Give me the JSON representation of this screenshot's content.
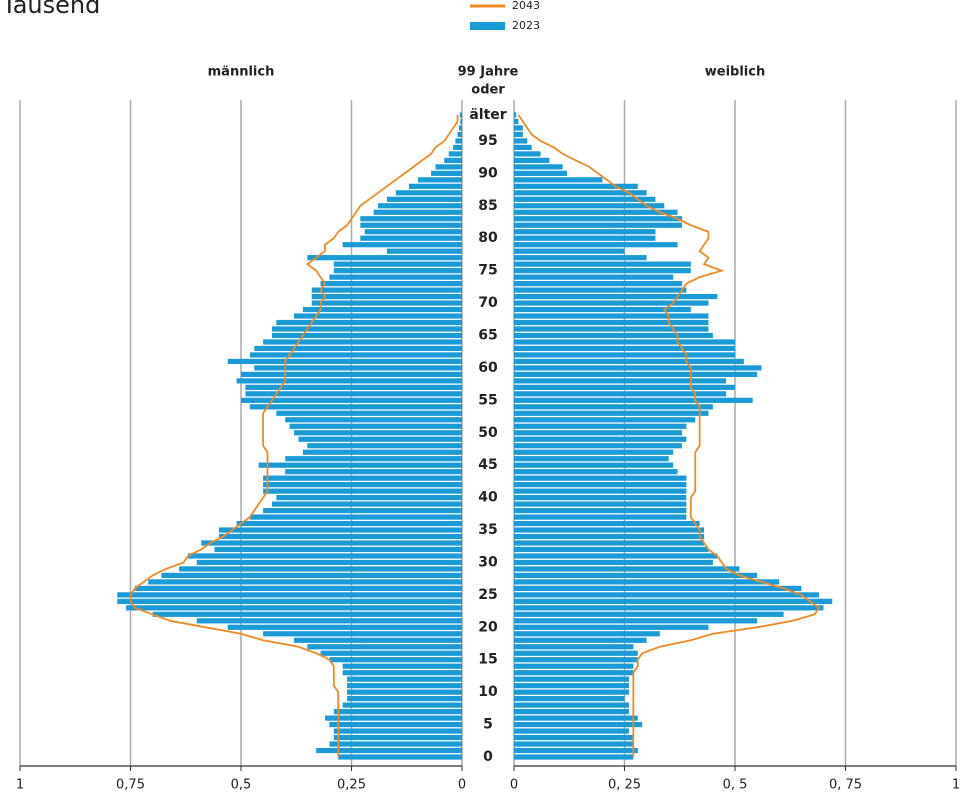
{
  "chart_data": {
    "type": "pyramid",
    "title": "Tausend",
    "legend": [
      {
        "name": "2043",
        "color": "#f08a24",
        "style": "line"
      },
      {
        "name": "2023",
        "color": "#1a9ad6",
        "style": "bar"
      }
    ],
    "age_top_label": [
      "99 Jahre",
      "oder",
      "älter"
    ],
    "ages": [
      0,
      1,
      2,
      3,
      4,
      5,
      6,
      7,
      8,
      9,
      10,
      11,
      12,
      13,
      14,
      15,
      16,
      17,
      18,
      19,
      20,
      21,
      22,
      23,
      24,
      25,
      26,
      27,
      28,
      29,
      30,
      31,
      32,
      33,
      34,
      35,
      36,
      37,
      38,
      39,
      40,
      41,
      42,
      43,
      44,
      45,
      46,
      47,
      48,
      49,
      50,
      51,
      52,
      53,
      54,
      55,
      56,
      57,
      58,
      59,
      60,
      61,
      62,
      63,
      64,
      65,
      66,
      67,
      68,
      69,
      70,
      71,
      72,
      73,
      74,
      75,
      76,
      77,
      78,
      79,
      80,
      81,
      82,
      83,
      84,
      85,
      86,
      87,
      88,
      89,
      90,
      91,
      92,
      93,
      94,
      95,
      96,
      97,
      98,
      99
    ],
    "ylim": [
      0,
      99
    ],
    "yticks": [
      0,
      5,
      10,
      15,
      20,
      25,
      30,
      35,
      40,
      45,
      50,
      55,
      60,
      65,
      70,
      75,
      80,
      85,
      90,
      95
    ],
    "grid": true,
    "panels": [
      {
        "name": "männlich",
        "side": "left",
        "xlim": [
          0,
          1
        ],
        "xticks": [
          0,
          {
            "value": 0.25,
            "label": "0,25"
          },
          {
            "value": 0.5,
            "label": "0,5"
          },
          {
            "value": 0.75,
            "label": "0,75"
          },
          1
        ],
        "bars": [
          0.28,
          0.33,
          0.3,
          0.29,
          0.29,
          0.3,
          0.31,
          0.29,
          0.27,
          0.26,
          0.26,
          0.26,
          0.26,
          0.27,
          0.27,
          0.3,
          0.32,
          0.35,
          0.38,
          0.45,
          0.53,
          0.6,
          0.7,
          0.76,
          0.78,
          0.78,
          0.74,
          0.71,
          0.68,
          0.64,
          0.6,
          0.62,
          0.56,
          0.59,
          0.55,
          0.55,
          0.51,
          0.48,
          0.45,
          0.43,
          0.42,
          0.45,
          0.45,
          0.45,
          0.4,
          0.46,
          0.4,
          0.36,
          0.35,
          0.37,
          0.38,
          0.39,
          0.4,
          0.42,
          0.48,
          0.5,
          0.49,
          0.49,
          0.51,
          0.5,
          0.47,
          0.53,
          0.48,
          0.47,
          0.45,
          0.43,
          0.43,
          0.42,
          0.38,
          0.36,
          0.34,
          0.34,
          0.34,
          0.32,
          0.3,
          0.29,
          0.29,
          0.35,
          0.17,
          0.27,
          0.23,
          0.22,
          0.23,
          0.23,
          0.2,
          0.19,
          0.17,
          0.15,
          0.12,
          0.1,
          0.07,
          0.06,
          0.04,
          0.03,
          0.02,
          0.015,
          0.01,
          0.007,
          0.004,
          0.005
        ],
        "line": [
          0.28,
          0.28,
          0.28,
          0.28,
          0.28,
          0.28,
          0.28,
          0.28,
          0.28,
          0.28,
          0.28,
          0.29,
          0.29,
          0.29,
          0.29,
          0.3,
          0.33,
          0.37,
          0.45,
          0.5,
          0.58,
          0.66,
          0.7,
          0.74,
          0.75,
          0.75,
          0.74,
          0.72,
          0.7,
          0.67,
          0.63,
          0.62,
          0.59,
          0.57,
          0.54,
          0.52,
          0.5,
          0.48,
          0.47,
          0.46,
          0.45,
          0.44,
          0.44,
          0.44,
          0.44,
          0.44,
          0.44,
          0.44,
          0.45,
          0.45,
          0.45,
          0.45,
          0.45,
          0.45,
          0.44,
          0.43,
          0.42,
          0.41,
          0.4,
          0.4,
          0.4,
          0.4,
          0.39,
          0.38,
          0.37,
          0.36,
          0.35,
          0.34,
          0.33,
          0.32,
          0.32,
          0.31,
          0.32,
          0.31,
          0.32,
          0.33,
          0.35,
          0.33,
          0.31,
          0.31,
          0.29,
          0.28,
          0.26,
          0.25,
          0.24,
          0.23,
          0.21,
          0.19,
          0.17,
          0.15,
          0.13,
          0.11,
          0.09,
          0.07,
          0.06,
          0.04,
          0.03,
          0.02,
          0.01,
          0.01
        ]
      },
      {
        "name": "weiblich",
        "side": "right",
        "xlim": [
          0,
          1
        ],
        "xticks": [
          0,
          {
            "value": 0.25,
            "label": "0, 25"
          },
          {
            "value": 0.5,
            "label": "0, 5"
          },
          {
            "value": 0.75,
            "label": "0, 75"
          },
          1
        ],
        "bars": [
          0.27,
          0.28,
          0.27,
          0.27,
          0.26,
          0.29,
          0.28,
          0.26,
          0.26,
          0.25,
          0.26,
          0.26,
          0.26,
          0.27,
          0.27,
          0.28,
          0.28,
          0.27,
          0.3,
          0.33,
          0.44,
          0.55,
          0.61,
          0.7,
          0.72,
          0.69,
          0.65,
          0.6,
          0.55,
          0.51,
          0.45,
          0.46,
          0.44,
          0.43,
          0.43,
          0.43,
          0.42,
          0.39,
          0.39,
          0.39,
          0.39,
          0.39,
          0.39,
          0.39,
          0.37,
          0.36,
          0.35,
          0.36,
          0.38,
          0.39,
          0.38,
          0.39,
          0.41,
          0.44,
          0.45,
          0.54,
          0.48,
          0.5,
          0.48,
          0.55,
          0.56,
          0.52,
          0.5,
          0.5,
          0.5,
          0.45,
          0.44,
          0.44,
          0.44,
          0.4,
          0.44,
          0.46,
          0.39,
          0.38,
          0.36,
          0.4,
          0.4,
          0.3,
          0.25,
          0.37,
          0.32,
          0.32,
          0.38,
          0.38,
          0.37,
          0.34,
          0.32,
          0.3,
          0.28,
          0.2,
          0.12,
          0.11,
          0.08,
          0.06,
          0.04,
          0.03,
          0.02,
          0.02,
          0.01,
          0.005
        ],
        "line": [
          0.27,
          0.27,
          0.27,
          0.27,
          0.27,
          0.27,
          0.27,
          0.27,
          0.27,
          0.27,
          0.27,
          0.27,
          0.27,
          0.27,
          0.28,
          0.28,
          0.29,
          0.33,
          0.4,
          0.45,
          0.55,
          0.63,
          0.68,
          0.69,
          0.67,
          0.65,
          0.61,
          0.56,
          0.51,
          0.48,
          0.47,
          0.46,
          0.44,
          0.43,
          0.42,
          0.42,
          0.41,
          0.4,
          0.4,
          0.4,
          0.4,
          0.41,
          0.41,
          0.41,
          0.41,
          0.41,
          0.41,
          0.41,
          0.42,
          0.42,
          0.42,
          0.42,
          0.42,
          0.42,
          0.42,
          0.41,
          0.41,
          0.4,
          0.4,
          0.4,
          0.4,
          0.39,
          0.39,
          0.38,
          0.37,
          0.37,
          0.36,
          0.35,
          0.35,
          0.34,
          0.36,
          0.37,
          0.38,
          0.39,
          0.42,
          0.47,
          0.43,
          0.44,
          0.42,
          0.43,
          0.44,
          0.44,
          0.4,
          0.37,
          0.33,
          0.3,
          0.28,
          0.26,
          0.23,
          0.21,
          0.19,
          0.17,
          0.14,
          0.11,
          0.09,
          0.06,
          0.04,
          0.03,
          0.02,
          0.01
        ]
      }
    ]
  }
}
